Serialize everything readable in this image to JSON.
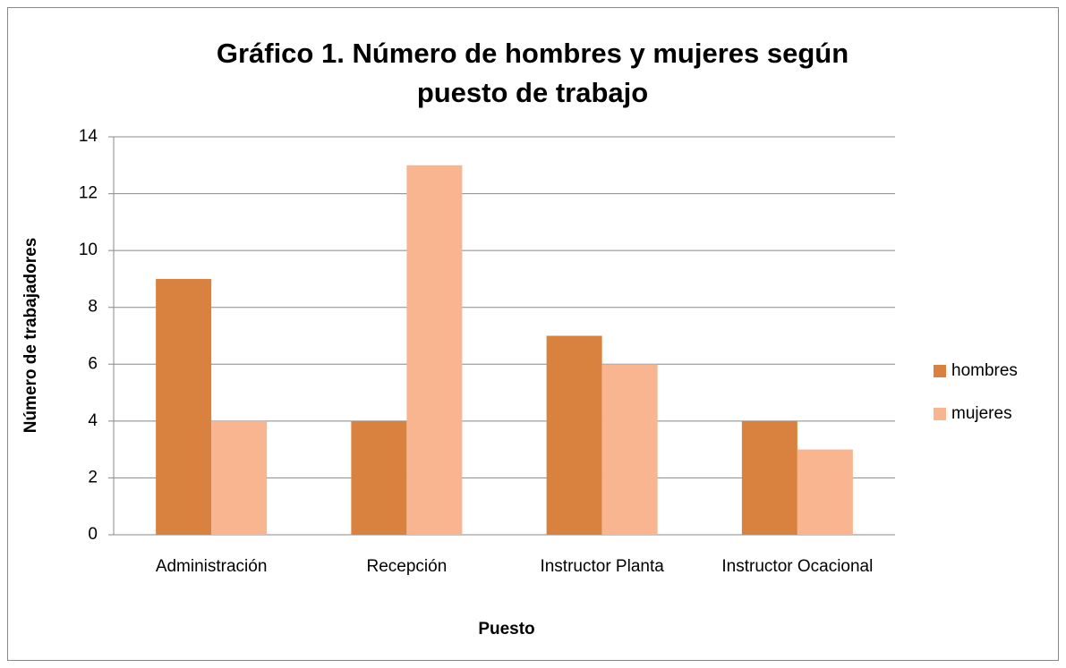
{
  "chart_data": {
    "type": "bar",
    "title": "Gráfico 1. Número de hombres y mujeres según puesto de trabajo",
    "x_label": "Puesto",
    "y_label": "Número de trabajadores",
    "categories": [
      "Administración",
      "Recepción",
      "Instructor Planta",
      "Instructor Ocacional"
    ],
    "series": [
      {
        "name": "hombres",
        "color": "#d9823f",
        "values": [
          9,
          4,
          7,
          4
        ]
      },
      {
        "name": "mujeres",
        "color": "#f8b58f",
        "values": [
          4,
          13,
          6,
          3
        ]
      }
    ],
    "ylim": [
      0,
      14
    ],
    "yticks": [
      0,
      2,
      4,
      6,
      8,
      10,
      12,
      14
    ],
    "grid": true,
    "legend": "right"
  }
}
